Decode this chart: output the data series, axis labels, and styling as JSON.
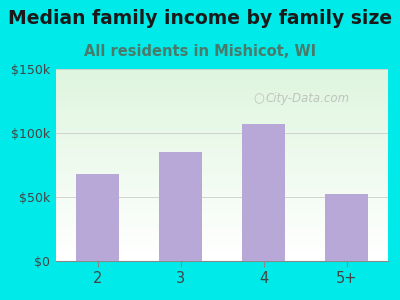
{
  "title": "Median family income by family size",
  "subtitle": "All residents in Mishicot, WI",
  "categories": [
    "2",
    "3",
    "4",
    "5+"
  ],
  "values": [
    68000,
    85000,
    107000,
    52000
  ],
  "bar_color": "#b8a8d8",
  "bg_color": "#00eaea",
  "plot_bg_top": "#ddf0dd",
  "plot_bg_bottom": "#ffffff",
  "title_color": "#1a1a1a",
  "subtitle_color": "#4a7a6a",
  "tick_color": "#444444",
  "ylim": [
    0,
    150000
  ],
  "yticks": [
    0,
    50000,
    100000,
    150000
  ],
  "ytick_labels": [
    "$0",
    "$50k",
    "$100k",
    "$150k"
  ],
  "watermark": "City-Data.com",
  "title_fontsize": 13.5,
  "subtitle_fontsize": 10.5
}
